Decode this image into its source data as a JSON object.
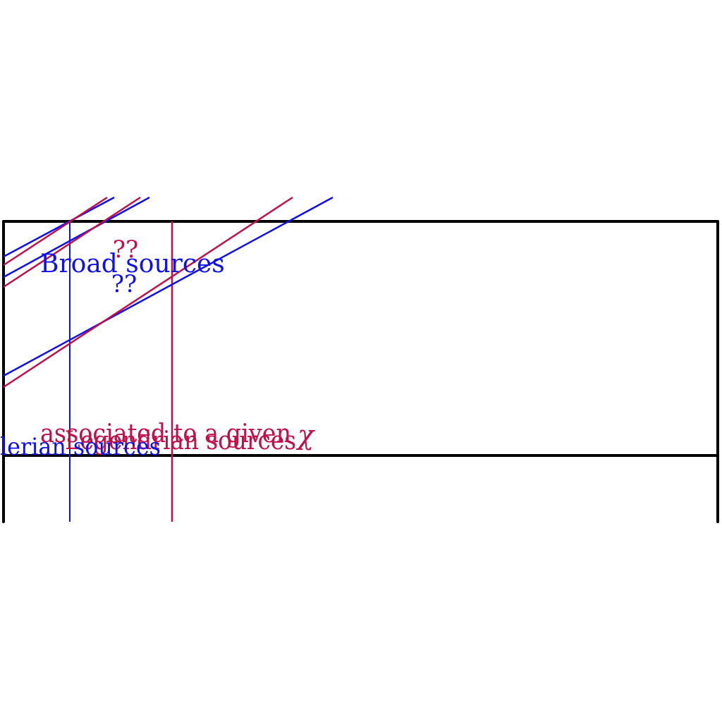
{
  "colors": {
    "frame": "#000000",
    "blue": "#1010ee",
    "crimson": "#c0104a",
    "background": "#ffffff"
  },
  "labels": {
    "broad_sources": "Broad sources",
    "unknown_crimson": "??",
    "unknown_blue": "??",
    "blue_bottom_label": "lerian sources",
    "crimson_bottom_label": "associated to a given ",
    "crimson_bottom_label_2": "Legendrian sources ",
    "chi": "χ"
  }
}
